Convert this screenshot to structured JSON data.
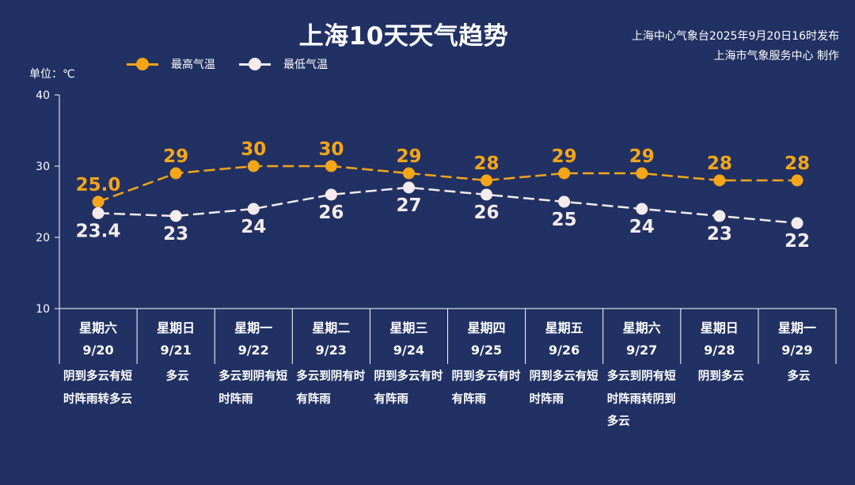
{
  "header": {
    "title": "上海10天天气趋势",
    "publisher_line1": "上海中心气象台2025年9月20日16时发布",
    "publisher_line2": "上海市气象服务中心 制作",
    "unit_label": "单位：℃"
  },
  "colors": {
    "background": "#223163",
    "high": "#f5a618",
    "low": "#f4ecec",
    "axis": "#ffffff"
  },
  "chart_data": {
    "type": "line",
    "ylim": [
      10,
      40
    ],
    "yticks": [
      "10",
      "20",
      "30",
      "40"
    ],
    "grid": false,
    "legend_position": "top-left",
    "categories": [
      {
        "weekday": "星期六",
        "date": "9/20"
      },
      {
        "weekday": "星期日",
        "date": "9/21"
      },
      {
        "weekday": "星期一",
        "date": "9/22"
      },
      {
        "weekday": "星期二",
        "date": "9/23"
      },
      {
        "weekday": "星期三",
        "date": "9/24"
      },
      {
        "weekday": "星期四",
        "date": "9/25"
      },
      {
        "weekday": "星期五",
        "date": "9/26"
      },
      {
        "weekday": "星期六",
        "date": "9/27"
      },
      {
        "weekday": "星期日",
        "date": "9/28"
      },
      {
        "weekday": "星期一",
        "date": "9/29"
      }
    ],
    "series": [
      {
        "name": "最高气温",
        "values": [
          25.0,
          29,
          30,
          30,
          29,
          28,
          29,
          29,
          28,
          28
        ],
        "labels": [
          "25.0",
          "29",
          "30",
          "30",
          "29",
          "28",
          "29",
          "29",
          "28",
          "28"
        ]
      },
      {
        "name": "最低气温",
        "values": [
          23.4,
          23,
          24,
          26,
          27,
          26,
          25,
          24,
          23,
          22
        ],
        "labels": [
          "23.4",
          "23",
          "24",
          "26",
          "27",
          "26",
          "25",
          "24",
          "23",
          "22"
        ]
      }
    ],
    "weather": [
      "阴到多云有短时阵雨转多云",
      "多云",
      "多云到阴有短时阵雨",
      "多云到阴有时有阵雨",
      "阴到多云有时有阵雨",
      "阴到多云有时有阵雨",
      "阴到多云有短时阵雨",
      "多云到阴有短时阵雨转阴到多云",
      "阴到多云",
      "多云"
    ]
  }
}
